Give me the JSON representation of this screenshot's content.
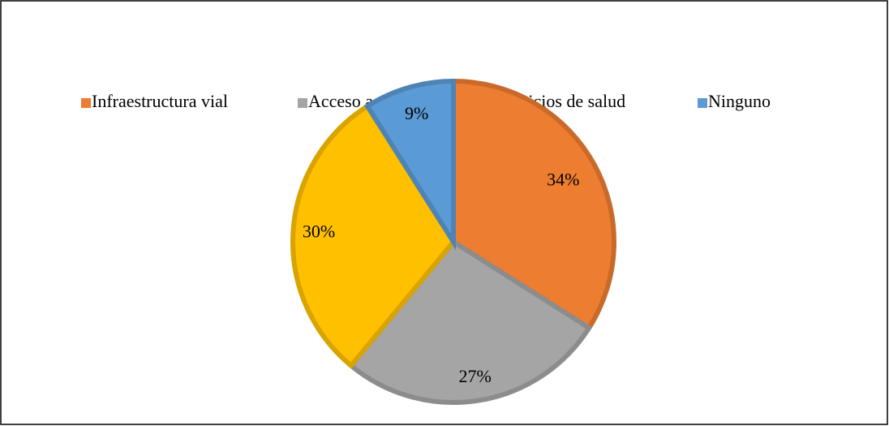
{
  "chart_data": {
    "type": "pie",
    "categories": [
      "Infraestructura vial",
      "Acceso a educación",
      "Servicios de salud",
      "Ninguno"
    ],
    "values": [
      34,
      27,
      30,
      9
    ],
    "value_labels": [
      "34%",
      "27%",
      "30%",
      "9%"
    ],
    "colors": [
      "#ED7D31",
      "#A5A5A5",
      "#FFC000",
      "#5B9BD5"
    ],
    "legend": "top"
  }
}
